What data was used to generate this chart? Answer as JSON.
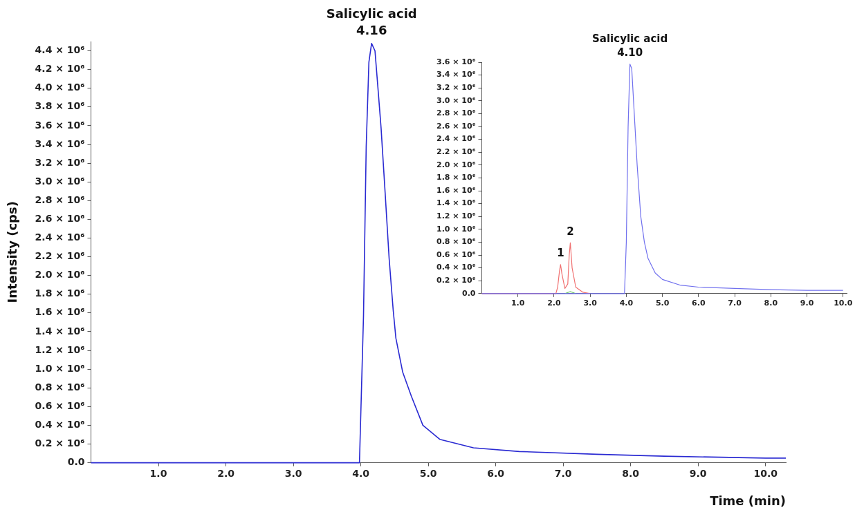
{
  "chart_data": [
    {
      "type": "line",
      "xlabel": "Time (min)",
      "ylabel": "Intensity (cps)",
      "xlim": [
        0,
        10.3
      ],
      "ylim": [
        0,
        4500000
      ],
      "xticks": [
        {
          "value": 1,
          "label": "1.0"
        },
        {
          "value": 2,
          "label": "2.0"
        },
        {
          "value": 3,
          "label": "3.0"
        },
        {
          "value": 4,
          "label": "4.0"
        },
        {
          "value": 5,
          "label": "5.0"
        },
        {
          "value": 6,
          "label": "6.0"
        },
        {
          "value": 7,
          "label": "7.0"
        },
        {
          "value": 8,
          "label": "8.0"
        },
        {
          "value": 9,
          "label": "9.0"
        },
        {
          "value": 10,
          "label": "10.0"
        }
      ],
      "yticks": [
        {
          "value": 0,
          "label": "0.0"
        },
        {
          "value": 200000,
          "label": "0.2 × 10⁶"
        },
        {
          "value": 400000,
          "label": "0.4 × 10⁶"
        },
        {
          "value": 600000,
          "label": "0.6 × 10⁶"
        },
        {
          "value": 800000,
          "label": "0.8 × 10⁶"
        },
        {
          "value": 1000000,
          "label": "1.0 × 10⁶"
        },
        {
          "value": 1200000,
          "label": "1.2 × 10⁶"
        },
        {
          "value": 1400000,
          "label": "1.4 × 10⁶"
        },
        {
          "value": 1600000,
          "label": "1.6 × 10⁶"
        },
        {
          "value": 1800000,
          "label": "1.8 × 10⁶"
        },
        {
          "value": 2000000,
          "label": "2.0 × 10⁶"
        },
        {
          "value": 2200000,
          "label": "2.2 × 10⁶"
        },
        {
          "value": 2400000,
          "label": "2.4 × 10⁶"
        },
        {
          "value": 2600000,
          "label": "2.6 × 10⁶"
        },
        {
          "value": 2800000,
          "label": "2.8 × 10⁶"
        },
        {
          "value": 3000000,
          "label": "3.0 × 10⁶"
        },
        {
          "value": 3200000,
          "label": "3.2 × 10⁶"
        },
        {
          "value": 3400000,
          "label": "3.4 × 10⁶"
        },
        {
          "value": 3600000,
          "label": "3.6 × 10⁶"
        },
        {
          "value": 3800000,
          "label": "3.8 × 10⁶"
        },
        {
          "value": 4000000,
          "label": "4.0 × 10⁶"
        },
        {
          "value": 4200000,
          "label": "4.2 × 10⁶"
        },
        {
          "value": 4400000,
          "label": "4.4 × 10⁶"
        }
      ],
      "grid": false,
      "legend": false,
      "marker": "none",
      "line_style": "solid",
      "annotations": [
        {
          "text": "Salicylic acid",
          "x": 4.16,
          "y": 4480000
        },
        {
          "text": "4.16",
          "x": 4.16,
          "y": 4480000
        }
      ],
      "series": [
        {
          "color": "#2a2ad2",
          "x": [
            0,
            3.9,
            3.98,
            4.04,
            4.08,
            4.12,
            4.16,
            4.21,
            4.25,
            4.3,
            4.36,
            4.42,
            4.48,
            4.52,
            4.62,
            4.75,
            4.92,
            5.17,
            5.67,
            6.35,
            7.5,
            8.5,
            10,
            10.3
          ],
          "values": [
            0,
            0,
            0,
            1570000,
            3380000,
            4280000,
            4480000,
            4400000,
            4040000,
            3580000,
            2890000,
            2180000,
            1630000,
            1330000,
            970000,
            710000,
            400000,
            250000,
            160000,
            120000,
            90000,
            70000,
            50000,
            50000
          ]
        }
      ]
    },
    {
      "type": "line",
      "xlim": [
        0,
        10.1
      ],
      "ylim": [
        0,
        3600000
      ],
      "xticks": [
        {
          "value": 1,
          "label": "1.0"
        },
        {
          "value": 2,
          "label": "2.0"
        },
        {
          "value": 3,
          "label": "3.0"
        },
        {
          "value": 4,
          "label": "4.0"
        },
        {
          "value": 5,
          "label": "5.0"
        },
        {
          "value": 6,
          "label": "6.0"
        },
        {
          "value": 7,
          "label": "7.0"
        },
        {
          "value": 8,
          "label": "8.0"
        },
        {
          "value": 9,
          "label": "9.0"
        },
        {
          "value": 10,
          "label": "10.0"
        }
      ],
      "yticks": [
        {
          "value": 0,
          "label": "0.0"
        },
        {
          "value": 200000,
          "label": "0.2 × 10⁶"
        },
        {
          "value": 400000,
          "label": "0.4 × 10⁶"
        },
        {
          "value": 600000,
          "label": "0.6 × 10⁶"
        },
        {
          "value": 800000,
          "label": "0.8 × 10⁶"
        },
        {
          "value": 1000000,
          "label": "1.0 × 10⁶"
        },
        {
          "value": 1200000,
          "label": "1.2 × 10⁶"
        },
        {
          "value": 1400000,
          "label": "1.4 × 10⁶"
        },
        {
          "value": 1600000,
          "label": "1.6 × 10⁶"
        },
        {
          "value": 1800000,
          "label": "1.8 × 10⁶"
        },
        {
          "value": 2000000,
          "label": "2.0 × 10⁶"
        },
        {
          "value": 2200000,
          "label": "2.2 × 10⁶"
        },
        {
          "value": 2400000,
          "label": "2.4 × 10⁶"
        },
        {
          "value": 2600000,
          "label": "2.6 × 10⁶"
        },
        {
          "value": 2800000,
          "label": "2.8 × 10⁶"
        },
        {
          "value": 3000000,
          "label": "3.0 × 10⁶"
        },
        {
          "value": 3200000,
          "label": "3.2 × 10⁶"
        },
        {
          "value": 3400000,
          "label": "3.4 × 10⁶"
        },
        {
          "value": 3600000,
          "label": "3.6 × 10⁶"
        }
      ],
      "grid": false,
      "legend": false,
      "marker": "none",
      "line_style": "solid",
      "annotations": [
        {
          "text": "Salicylic acid",
          "x": 4.1,
          "y": 3570000
        },
        {
          "text": "4.10",
          "x": 4.1,
          "y": 3570000
        },
        {
          "text": "1",
          "x": 2.18,
          "y": 450000
        },
        {
          "text": "2",
          "x": 2.45,
          "y": 790000
        }
      ],
      "series": [
        {
          "color": "#7070ee",
          "x": [
            0,
            3.95,
            4,
            4.05,
            4.1,
            4.15,
            4.2,
            4.3,
            4.4,
            4.5,
            4.6,
            4.8,
            5,
            5.5,
            6,
            7,
            8,
            9,
            10
          ],
          "values": [
            0,
            0,
            800000,
            2600000,
            3570000,
            3500000,
            3000000,
            2000000,
            1200000,
            800000,
            550000,
            320000,
            220000,
            130000,
            100000,
            80000,
            60000,
            50000,
            50000
          ]
        },
        {
          "color": "#f07070",
          "x": [
            0,
            2.05,
            2.1,
            2.15,
            2.18,
            2.22,
            2.3,
            2.38,
            2.42,
            2.45,
            2.5,
            2.6,
            2.8,
            3
          ],
          "values": [
            0,
            0,
            100000,
            350000,
            450000,
            300000,
            80000,
            150000,
            600000,
            790000,
            400000,
            100000,
            20000,
            0
          ]
        },
        {
          "color": "#60c060",
          "x": [
            2.3,
            2.45,
            2.6
          ],
          "values": [
            0,
            30000,
            0
          ]
        }
      ]
    }
  ]
}
